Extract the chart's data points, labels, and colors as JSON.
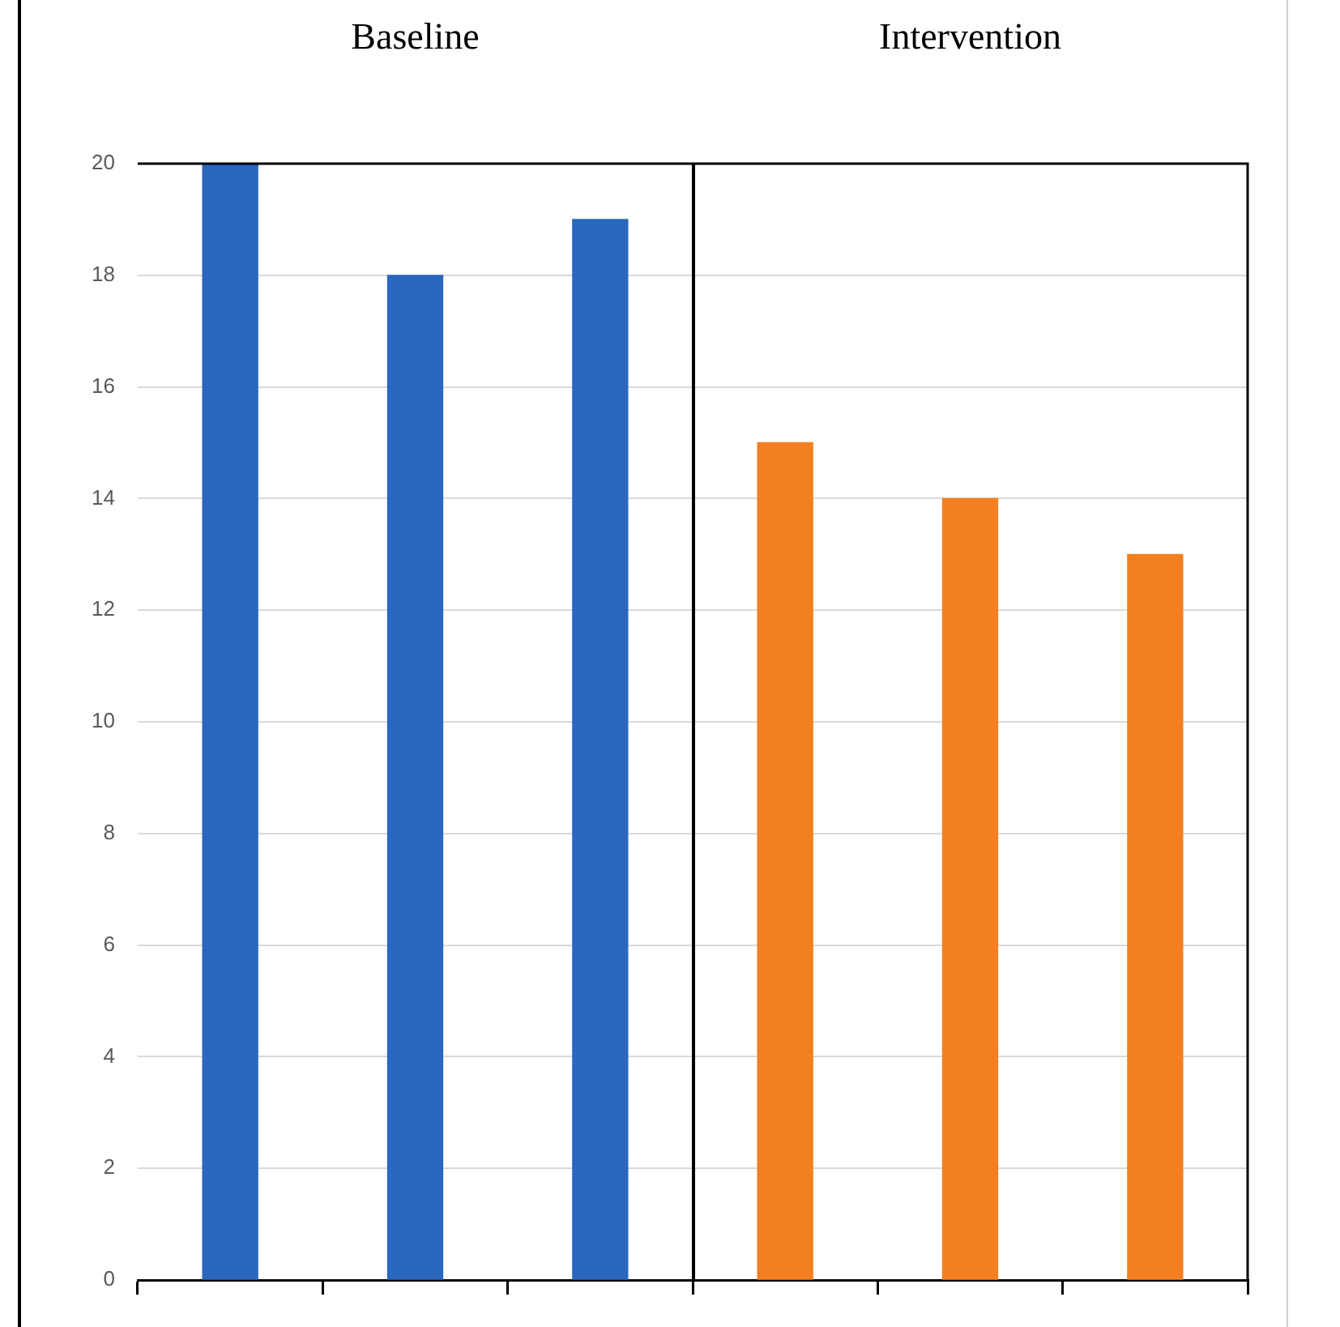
{
  "chart_data": {
    "type": "bar",
    "categories": [
      null,
      null,
      null,
      null,
      null,
      null
    ],
    "values": [
      20,
      18,
      19,
      15,
      14,
      13
    ],
    "colors": [
      "#2a67be",
      "#2a67be",
      "#2a67be",
      "#f47f20",
      "#f47f20",
      "#f47f20"
    ],
    "ylim": [
      0,
      20
    ],
    "yticks": [
      0,
      2,
      4,
      6,
      8,
      10,
      12,
      14,
      16,
      18,
      20
    ],
    "grid": "y",
    "annotations": [
      "Baseline",
      "Intervention"
    ]
  }
}
